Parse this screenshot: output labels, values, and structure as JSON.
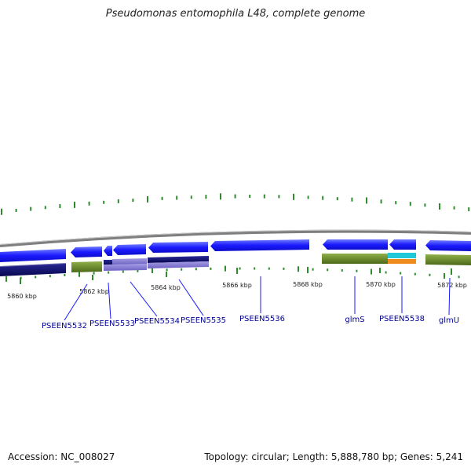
{
  "title": "Pseudomonas entomophila L48, complete genome",
  "axis_labels": [
    "5860 kbp",
    "5862 kbp",
    "5864 kbp",
    "5866 kbp",
    "5868 kbp",
    "5870 kbp",
    "5872 kbp"
  ],
  "gene_labels": [
    "PSEEN5532",
    "PSEEN5533",
    "PSEEN5534",
    "PSEEN5535",
    "PSEEN5536",
    "glmS",
    "PSEEN5538",
    "glmU"
  ],
  "footer": {
    "accession": "Accession: NC_008027",
    "stats": "Topology: circular; Length: 5,888,780 bp; Genes: 5,241"
  },
  "colors": {
    "forward_cds": "#1a1aff",
    "dark_cds": "#0a0a6e",
    "lavender": "#8a7fd8",
    "olive": "#6b8e23",
    "cyan": "#20c8d8",
    "orange": "#f08c1e",
    "backbone": "#8a8a8a",
    "gc_skew": "#2e8b2e"
  }
}
